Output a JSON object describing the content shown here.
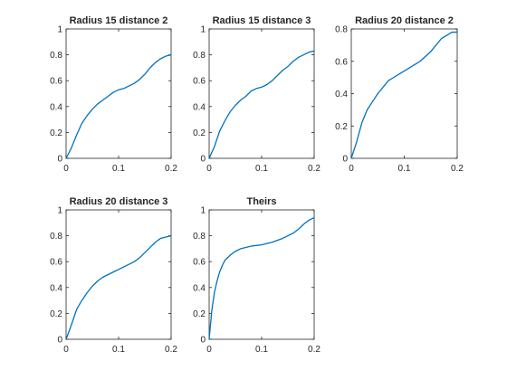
{
  "chart_data": [
    {
      "type": "line",
      "title": "Radius 15 distance 2",
      "xlabel": "",
      "ylabel": "",
      "xlim": [
        0,
        0.2
      ],
      "ylim": [
        0,
        1
      ],
      "x_ticks": [
        0,
        0.1,
        0.2
      ],
      "x_tick_labels": [
        "0",
        "0.1",
        "0.2"
      ],
      "y_ticks": [
        0,
        0.2,
        0.4,
        0.6,
        0.8,
        1
      ],
      "y_tick_labels": [
        "0",
        "0.2",
        "0.4",
        "0.6",
        "0.8",
        "1"
      ],
      "grid": false,
      "series": [
        {
          "color": "#0072BD",
          "x": [
            0,
            0.01,
            0.02,
            0.03,
            0.04,
            0.05,
            0.06,
            0.07,
            0.08,
            0.09,
            0.1,
            0.11,
            0.12,
            0.13,
            0.14,
            0.15,
            0.16,
            0.17,
            0.18,
            0.19,
            0.2
          ],
          "y": [
            0,
            0.08,
            0.18,
            0.27,
            0.33,
            0.38,
            0.42,
            0.45,
            0.48,
            0.51,
            0.53,
            0.54,
            0.56,
            0.58,
            0.61,
            0.65,
            0.7,
            0.74,
            0.77,
            0.79,
            0.8
          ]
        }
      ]
    },
    {
      "type": "line",
      "title": "Radius 15 distance 3",
      "xlabel": "",
      "ylabel": "",
      "xlim": [
        0,
        0.2
      ],
      "ylim": [
        0,
        1
      ],
      "x_ticks": [
        0,
        0.1,
        0.2
      ],
      "x_tick_labels": [
        "0",
        "0.1",
        "0.2"
      ],
      "y_ticks": [
        0,
        0.2,
        0.4,
        0.6,
        0.8,
        1
      ],
      "y_tick_labels": [
        "0",
        "0.2",
        "0.4",
        "0.6",
        "0.8",
        "1"
      ],
      "grid": false,
      "series": [
        {
          "color": "#0072BD",
          "x": [
            0,
            0.01,
            0.02,
            0.03,
            0.04,
            0.05,
            0.06,
            0.07,
            0.08,
            0.09,
            0.1,
            0.11,
            0.12,
            0.13,
            0.14,
            0.15,
            0.16,
            0.17,
            0.18,
            0.19,
            0.2
          ],
          "y": [
            0,
            0.09,
            0.21,
            0.29,
            0.36,
            0.41,
            0.45,
            0.48,
            0.52,
            0.54,
            0.55,
            0.57,
            0.6,
            0.64,
            0.68,
            0.71,
            0.75,
            0.78,
            0.8,
            0.82,
            0.83
          ]
        }
      ]
    },
    {
      "type": "line",
      "title": "Radius 20 distance 2",
      "xlabel": "",
      "ylabel": "",
      "xlim": [
        0,
        0.2
      ],
      "ylim": [
        0,
        0.8
      ],
      "x_ticks": [
        0,
        0.1,
        0.2
      ],
      "x_tick_labels": [
        "0",
        "0.1",
        "0.2"
      ],
      "y_ticks": [
        0,
        0.2,
        0.4,
        0.6,
        0.8
      ],
      "y_tick_labels": [
        "0",
        "0.2",
        "0.4",
        "0.6",
        "0.8"
      ],
      "grid": false,
      "series": [
        {
          "color": "#0072BD",
          "x": [
            0,
            0.01,
            0.02,
            0.03,
            0.04,
            0.05,
            0.06,
            0.07,
            0.08,
            0.09,
            0.1,
            0.11,
            0.12,
            0.13,
            0.14,
            0.15,
            0.16,
            0.17,
            0.18,
            0.19,
            0.2
          ],
          "y": [
            0,
            0.1,
            0.22,
            0.3,
            0.35,
            0.4,
            0.44,
            0.48,
            0.5,
            0.52,
            0.54,
            0.56,
            0.58,
            0.6,
            0.63,
            0.66,
            0.7,
            0.74,
            0.76,
            0.78,
            0.78
          ]
        }
      ]
    },
    {
      "type": "line",
      "title": "Radius 20 distance 3",
      "xlabel": "",
      "ylabel": "",
      "xlim": [
        0,
        0.2
      ],
      "ylim": [
        0,
        1
      ],
      "x_ticks": [
        0,
        0.1,
        0.2
      ],
      "x_tick_labels": [
        "0",
        "0.1",
        "0.2"
      ],
      "y_ticks": [
        0,
        0.2,
        0.4,
        0.6,
        0.8,
        1
      ],
      "y_tick_labels": [
        "0",
        "0.2",
        "0.4",
        "0.6",
        "0.8",
        "1"
      ],
      "grid": false,
      "series": [
        {
          "color": "#0072BD",
          "x": [
            0,
            0.01,
            0.02,
            0.03,
            0.04,
            0.05,
            0.06,
            0.07,
            0.08,
            0.09,
            0.1,
            0.11,
            0.12,
            0.13,
            0.14,
            0.15,
            0.16,
            0.17,
            0.18,
            0.19,
            0.2
          ],
          "y": [
            0,
            0.11,
            0.23,
            0.3,
            0.36,
            0.41,
            0.45,
            0.48,
            0.5,
            0.52,
            0.54,
            0.56,
            0.58,
            0.6,
            0.63,
            0.67,
            0.71,
            0.75,
            0.78,
            0.79,
            0.8
          ]
        }
      ]
    },
    {
      "type": "line",
      "title": "Theirs",
      "xlabel": "",
      "ylabel": "",
      "xlim": [
        0,
        0.2
      ],
      "ylim": [
        0,
        1
      ],
      "x_ticks": [
        0,
        0.1,
        0.2
      ],
      "x_tick_labels": [
        "0",
        "0.1",
        "0.2"
      ],
      "y_ticks": [
        0,
        0.2,
        0.4,
        0.6,
        0.8,
        1
      ],
      "y_tick_labels": [
        "0",
        "0.2",
        "0.4",
        "0.6",
        "0.8",
        "1"
      ],
      "grid": false,
      "series": [
        {
          "color": "#0072BD",
          "x": [
            0,
            0.005,
            0.01,
            0.015,
            0.02,
            0.025,
            0.03,
            0.04,
            0.05,
            0.06,
            0.07,
            0.08,
            0.09,
            0.1,
            0.11,
            0.12,
            0.13,
            0.14,
            0.15,
            0.16,
            0.17,
            0.18,
            0.19,
            0.2
          ],
          "y": [
            0,
            0.22,
            0.36,
            0.45,
            0.52,
            0.57,
            0.61,
            0.65,
            0.68,
            0.7,
            0.71,
            0.72,
            0.725,
            0.73,
            0.74,
            0.75,
            0.765,
            0.78,
            0.8,
            0.82,
            0.85,
            0.89,
            0.92,
            0.94
          ]
        }
      ]
    }
  ]
}
